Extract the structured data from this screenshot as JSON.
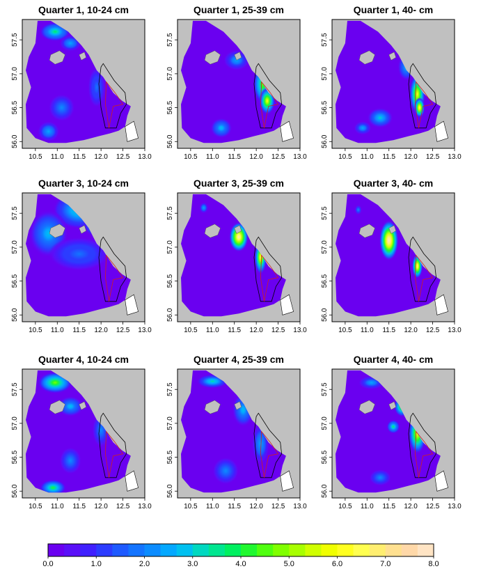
{
  "figure": {
    "panels": [
      {
        "title": "Quarter 1, 10-24 cm",
        "pattern": "q1-small"
      },
      {
        "title": "Quarter 1, 25-39 cm",
        "pattern": "q1-mid"
      },
      {
        "title": "Quarter 1, 40- cm",
        "pattern": "q1-large"
      },
      {
        "title": "Quarter 3, 10-24 cm",
        "pattern": "q3-small"
      },
      {
        "title": "Quarter 3, 25-39 cm",
        "pattern": "q3-mid"
      },
      {
        "title": "Quarter 3, 40- cm",
        "pattern": "q3-large"
      },
      {
        "title": "Quarter 4, 10-24 cm",
        "pattern": "q4-small"
      },
      {
        "title": "Quarter 4, 25-39 cm",
        "pattern": "q4-mid"
      },
      {
        "title": "Quarter 4, 40- cm",
        "pattern": "q4-large"
      }
    ],
    "x_ticks": [
      "10.5",
      "11.0",
      "11.5",
      "12.0",
      "12.5",
      "13.0"
    ],
    "y_ticks": [
      "56.0",
      "56.5",
      "57.0",
      "57.5"
    ],
    "x_range": [
      10.2,
      13.0
    ],
    "y_range": [
      55.9,
      57.8
    ]
  },
  "legend": {
    "range": [
      0,
      8
    ],
    "tick_labels": [
      "0.0",
      "1.0",
      "2.0",
      "3.0",
      "4.0",
      "5.0",
      "6.0",
      "7.0",
      "8.0"
    ],
    "colors": [
      "#6a00f0",
      "#5a10f8",
      "#4020ff",
      "#2c3cff",
      "#1e5aff",
      "#1474ff",
      "#0c8cff",
      "#04a8ff",
      "#00c0f0",
      "#00d8c0",
      "#00e690",
      "#00f060",
      "#20f830",
      "#50ff10",
      "#80ff00",
      "#a8ff00",
      "#d0ff00",
      "#f0ff00",
      "#ffff20",
      "#ffff50",
      "#ffee70",
      "#ffe090",
      "#ffd8a8",
      "#ffe4c4"
    ]
  },
  "colors": {
    "land": "#c0c0c0",
    "background_low": "#6a00f0",
    "stratum_outline": "#000000",
    "substratum_outline": "#d02020"
  }
}
